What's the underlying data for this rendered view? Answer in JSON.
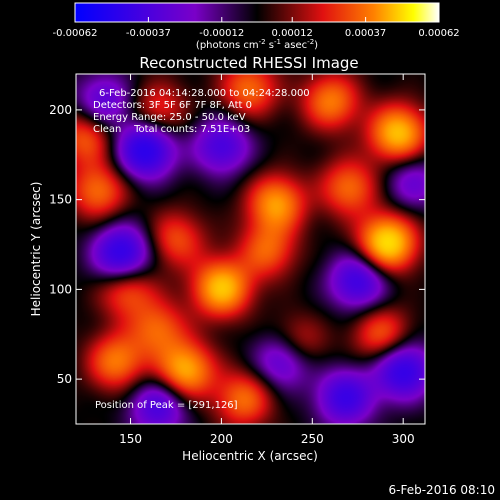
{
  "chart_data": {
    "type": "heatmap",
    "title": "Reconstructed RHESSI Image",
    "xlabel": "Heliocentric X (arcsec)",
    "ylabel": "Heliocentric Y (arcsec)",
    "xlim": [
      120,
      312
    ],
    "ylim": [
      25,
      220
    ],
    "x_ticks": [
      "150",
      "200",
      "250",
      "300"
    ],
    "y_ticks": [
      "50",
      "100",
      "150",
      "200"
    ],
    "colorbar": {
      "range": [
        -0.00062,
        0.00062
      ],
      "tick_labels": [
        "-0.00062",
        "-0.00037",
        "-0.00012",
        "0.00012",
        "0.00037",
        "0.00062"
      ],
      "unit_label": {
        "prefix": "(photons cm",
        "exp1": "-2",
        "mid1": " s",
        "exp2": "-1",
        "mid2": " asec",
        "exp3": "-2",
        "suffix": ")"
      }
    },
    "info_lines": [
      "6-Feb-2016 04:14:28.000 to 04:24:28.000",
      "Detectors: 3F 5F 6F 7F 8F, Att 0",
      "Energy Range: 25.0 - 50.0 keV",
      "Clean    Total counts: 7.51E+03"
    ],
    "peak_label": "Position of Peak = [291,126]",
    "peak_position": [
      291,
      126
    ],
    "blobs": [
      {
        "x": 291,
        "y": 126,
        "v": 1.0
      },
      {
        "x": 200,
        "y": 101,
        "v": 0.85
      },
      {
        "x": 230,
        "y": 148,
        "v": 0.7
      },
      {
        "x": 270,
        "y": 157,
        "v": 0.55
      },
      {
        "x": 180,
        "y": 55,
        "v": 0.78
      },
      {
        "x": 212,
        "y": 39,
        "v": 0.55
      },
      {
        "x": 142,
        "y": 60,
        "v": 0.6
      },
      {
        "x": 240,
        "y": 68,
        "v": 0.6
      },
      {
        "x": 288,
        "y": 75,
        "v": 0.5
      },
      {
        "x": 260,
        "y": 205,
        "v": 0.6
      },
      {
        "x": 297,
        "y": 187,
        "v": 0.85
      },
      {
        "x": 215,
        "y": 212,
        "v": 0.55
      },
      {
        "x": 165,
        "y": 200,
        "v": 0.4
      },
      {
        "x": 125,
        "y": 185,
        "v": 0.5
      },
      {
        "x": 132,
        "y": 155,
        "v": 0.55
      },
      {
        "x": 175,
        "y": 128,
        "v": 0.45
      },
      {
        "x": 165,
        "y": 78,
        "v": 0.5
      },
      {
        "x": 148,
        "y": 100,
        "v": 0.5
      },
      {
        "x": 225,
        "y": 122,
        "v": 0.5
      },
      {
        "x": 158,
        "y": 178,
        "v": -0.9
      },
      {
        "x": 145,
        "y": 120,
        "v": -0.85
      },
      {
        "x": 235,
        "y": 62,
        "v": -0.8
      },
      {
        "x": 300,
        "y": 55,
        "v": -0.8
      },
      {
        "x": 268,
        "y": 40,
        "v": -0.7
      },
      {
        "x": 275,
        "y": 105,
        "v": -0.7
      },
      {
        "x": 200,
        "y": 180,
        "v": -0.6
      },
      {
        "x": 165,
        "y": 35,
        "v": -0.6
      },
      {
        "x": 305,
        "y": 160,
        "v": -0.4
      },
      {
        "x": 135,
        "y": 205,
        "v": -0.5
      }
    ]
  },
  "footer": {
    "timestamp": "6-Feb-2016 08:10"
  }
}
